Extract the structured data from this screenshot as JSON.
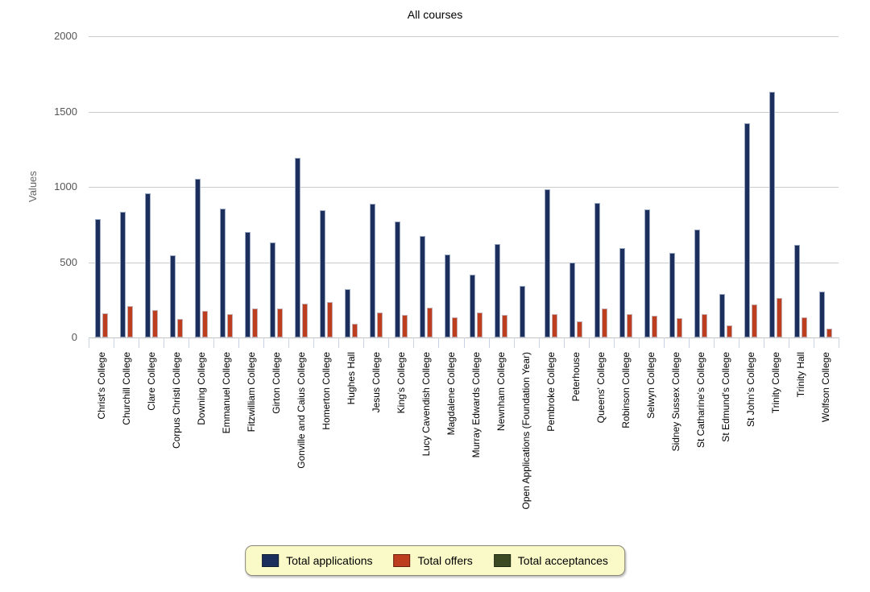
{
  "title": "All courses",
  "y_axis_label": "Values",
  "chart_data": {
    "type": "bar",
    "title": "All courses",
    "xlabel": "",
    "ylabel": "Values",
    "ylim": [
      0,
      2000
    ],
    "y_ticks": [
      0,
      500,
      1000,
      1500,
      2000
    ],
    "grid": true,
    "legend_position": "bottom-center",
    "categories": [
      "Christ's College",
      "Churchill College",
      "Clare College",
      "Corpus Christi College",
      "Downing College",
      "Emmanuel College",
      "Fitzwilliam College",
      "Girton College",
      "Gonville and Caius College",
      "Homerton College",
      "Hughes Hall",
      "Jesus College",
      "King's College",
      "Lucy Cavendish College",
      "Magdalene College",
      "Murray Edwards College",
      "Newnham College",
      "Open Applications (Foundation Year)",
      "Pembroke College",
      "Peterhouse",
      "Queens' College",
      "Robinson College",
      "Selwyn College",
      "Sidney Sussex College",
      "St Catharine's College",
      "St Edmund's College",
      "St John's College",
      "Trinity College",
      "Trinity Hall",
      "Wolfson College"
    ],
    "series": [
      {
        "name": "Total applications",
        "color": "#1b2e5c",
        "values": [
          785,
          835,
          955,
          545,
          1055,
          855,
          700,
          630,
          1190,
          845,
          320,
          890,
          770,
          675,
          550,
          415,
          620,
          345,
          985,
          495,
          895,
          595,
          850,
          560,
          715,
          290,
          1420,
          1630,
          615,
          305
        ]
      },
      {
        "name": "Total offers",
        "color": "#bd3e1e",
        "values": [
          160,
          210,
          180,
          125,
          175,
          155,
          190,
          190,
          225,
          235,
          90,
          165,
          150,
          200,
          135,
          165,
          150,
          0,
          155,
          105,
          195,
          155,
          145,
          130,
          155,
          80,
          220,
          260,
          135,
          60
        ]
      },
      {
        "name": "Total acceptances",
        "color": "#3a4a22",
        "values": [
          0,
          0,
          0,
          0,
          0,
          0,
          0,
          0,
          0,
          0,
          0,
          0,
          0,
          0,
          0,
          0,
          0,
          0,
          0,
          0,
          0,
          0,
          0,
          0,
          0,
          0,
          0,
          0,
          0,
          0
        ]
      }
    ]
  },
  "colors": {
    "legend_background": "#fafac8",
    "gridline": "#cccccc",
    "axis_tick": "#c9d3e6",
    "tick_text": "#555555",
    "axis_label_text": "#666666"
  }
}
